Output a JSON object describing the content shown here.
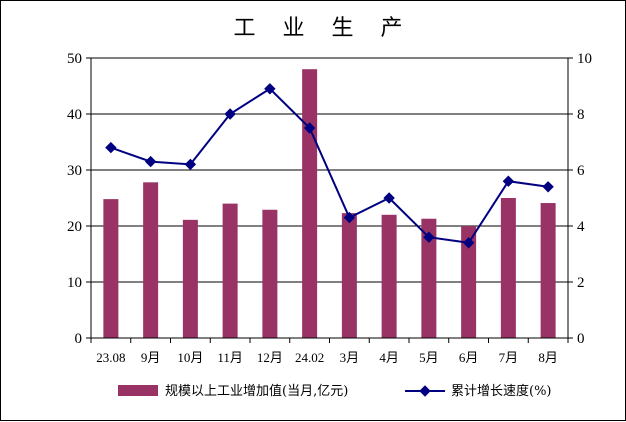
{
  "chart_data": {
    "type": "bar",
    "title": "工 业 生 产",
    "categories": [
      "23.08",
      "9月",
      "10月",
      "11月",
      "12月",
      "24.02",
      "3月",
      "4月",
      "5月",
      "6月",
      "7月",
      "8月"
    ],
    "series": [
      {
        "name": "规模以上工业增加值(当月,亿元)",
        "type": "bar",
        "axis": "left",
        "color": "#993366",
        "values": [
          24.8,
          27.8,
          21.1,
          24.0,
          22.9,
          48.0,
          22.3,
          22.0,
          21.3,
          20.0,
          25.0,
          24.1
        ]
      },
      {
        "name": "累计增长速度(%)",
        "type": "line",
        "axis": "right",
        "color": "#000080",
        "marker": "diamond",
        "values": [
          6.8,
          6.3,
          6.2,
          8.0,
          8.9,
          7.5,
          4.3,
          5.0,
          3.6,
          3.4,
          5.6,
          5.4
        ]
      }
    ],
    "y_left": {
      "min": 0,
      "max": 50,
      "ticks": [
        "0",
        "10",
        "20",
        "30",
        "40",
        "50"
      ]
    },
    "y_right": {
      "min": 0,
      "max": 10,
      "ticks": [
        "0",
        "2",
        "4",
        "6",
        "8",
        "10"
      ]
    },
    "grid": true,
    "legend_position": "bottom"
  }
}
